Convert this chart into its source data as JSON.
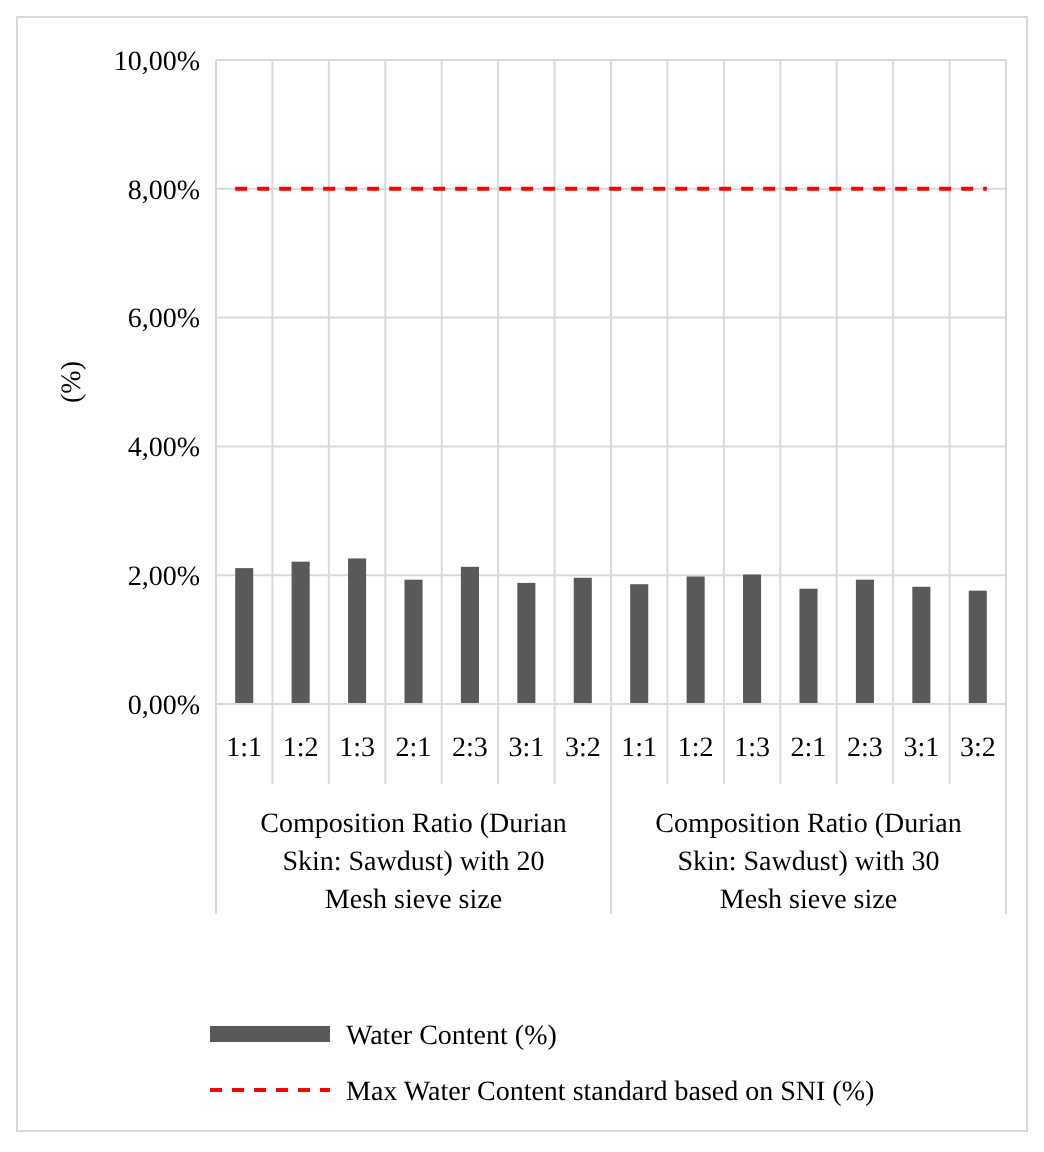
{
  "chart_data": {
    "type": "bar",
    "ylabel": "(%)",
    "categories": [
      "1:1",
      "1:2",
      "1:3",
      "2:1",
      "2:3",
      "3:1",
      "3:2",
      "1:1",
      "1:2",
      "1:3",
      "2:1",
      "2:3",
      "3:1",
      "3:2"
    ],
    "series": [
      {
        "name": "Water Content (%)",
        "color": "#595959",
        "values": [
          2.11,
          2.21,
          2.26,
          1.93,
          2.13,
          1.88,
          1.96,
          1.86,
          1.98,
          2.01,
          1.79,
          1.93,
          1.82,
          1.76
        ]
      }
    ],
    "ylim": [
      0,
      10
    ],
    "yticks": [
      {
        "value": 0,
        "label": "0,00%"
      },
      {
        "value": 2,
        "label": "2,00%"
      },
      {
        "value": 4,
        "label": "4,00%"
      },
      {
        "value": 6,
        "label": "6,00%"
      },
      {
        "value": 8,
        "label": "8,00%"
      },
      {
        "value": 10,
        "label": "10,00%"
      }
    ],
    "ref_lines": [
      {
        "axis": "y",
        "value": 8,
        "label": "Max Water Content standard based on SNI (%)",
        "color": "#ff0000",
        "line_style": "dashed"
      }
    ],
    "annotations": [
      "Composition Ratio (Durian Skin: Sawdust) with 20 Mesh sieve size",
      "Composition Ratio (Durian Skin: Sawdust) with 30 Mesh sieve size"
    ],
    "grid": true,
    "legend": "bottom"
  }
}
